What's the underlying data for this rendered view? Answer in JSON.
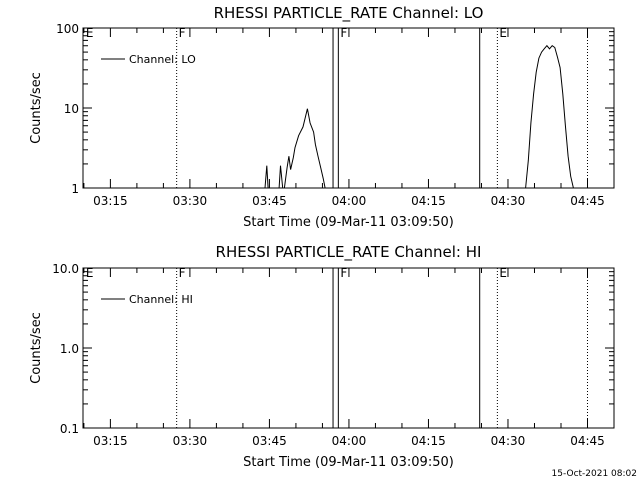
{
  "chart_data": [
    {
      "type": "line",
      "title": "RHESSI PARTICLE_RATE Channel: LO",
      "xlabel": "Start Time (09-Mar-11 03:09:50)",
      "ylabel": "Counts/sec",
      "yscale": "log",
      "ylim": [
        1,
        100
      ],
      "xlim": [
        "03:09:50",
        "04:50:00"
      ],
      "ytick_labels": [
        {
          "value": 1,
          "text": "1"
        },
        {
          "value": 10,
          "text": "10"
        },
        {
          "value": 100,
          "text": "100"
        }
      ],
      "xtick_labels": [
        "03:15",
        "03:30",
        "03:45",
        "04:00",
        "04:15",
        "04:30",
        "04:45"
      ],
      "legend": {
        "entries": [
          "Channel: LO"
        ],
        "placement": "top-left"
      },
      "grid": false,
      "markers": [
        {
          "time": "03:10:00",
          "label": "E",
          "style": "none"
        },
        {
          "time": "03:27:30",
          "label": "F",
          "style": "dotted"
        },
        {
          "time": "03:57:00",
          "label": "",
          "style": "solid"
        },
        {
          "time": "03:58:00",
          "label": "F",
          "style": "solid"
        },
        {
          "time": "04:24:40",
          "label": "",
          "style": "solid"
        },
        {
          "time": "04:28:00",
          "label": "E",
          "style": "dotted"
        },
        {
          "time": "04:45:00",
          "label": "",
          "style": "dotted"
        }
      ],
      "series": [
        {
          "name": "Channel: LO",
          "color": "#000000",
          "x": [
            "03:44:10",
            "03:44:30",
            "03:44:45",
            "03:45:05",
            "03:46:50",
            "03:47:05",
            "03:47:30",
            "03:47:50",
            "03:48:20",
            "03:48:40",
            "03:49:00",
            "03:49:30",
            "03:49:50",
            "03:50:30",
            "03:51:20",
            "03:52:10",
            "03:52:40",
            "03:53:20",
            "03:53:40",
            "03:54:10",
            "03:54:40",
            "03:55:10",
            "03:55:30",
            "03:55:50"
          ],
          "y": [
            1,
            1.9,
            1,
            1,
            1,
            1.9,
            1,
            1,
            1.8,
            2.5,
            1.7,
            2.4,
            3.2,
            4.5,
            5.8,
            9.8,
            6.5,
            5.0,
            3.5,
            2.5,
            1.8,
            1.3,
            1.0,
            1.0
          ]
        },
        {
          "name": "Channel: LO",
          "color": "#000000",
          "x": [
            "04:33:20",
            "04:33:50",
            "04:34:20",
            "04:34:50",
            "04:35:20",
            "04:35:50",
            "04:36:20",
            "04:36:50",
            "04:37:20",
            "04:37:50",
            "04:38:20",
            "04:38:50",
            "04:39:20",
            "04:39:50",
            "04:40:20",
            "04:40:50",
            "04:41:20",
            "04:41:50",
            "04:42:20"
          ],
          "y": [
            1,
            2.2,
            6.5,
            15,
            28,
            42,
            50,
            55,
            60,
            55,
            60,
            57,
            43,
            32,
            15,
            6,
            2.5,
            1.4,
            1
          ]
        }
      ]
    },
    {
      "type": "line",
      "title": "RHESSI PARTICLE_RATE Channel: HI",
      "xlabel": "Start Time (09-Mar-11 03:09:50)",
      "ylabel": "Counts/sec",
      "yscale": "log",
      "ylim": [
        0.1,
        10
      ],
      "xlim": [
        "03:09:50",
        "04:50:00"
      ],
      "ytick_labels": [
        {
          "value": 0.1,
          "text": "0.1"
        },
        {
          "value": 1,
          "text": "1.0"
        },
        {
          "value": 10,
          "text": "10.0"
        }
      ],
      "xtick_labels": [
        "03:15",
        "03:30",
        "03:45",
        "04:00",
        "04:15",
        "04:30",
        "04:45"
      ],
      "legend": {
        "entries": [
          "Channel: HI"
        ],
        "placement": "top-left"
      },
      "grid": false,
      "markers": [
        {
          "time": "03:10:00",
          "label": "E",
          "style": "none"
        },
        {
          "time": "03:27:30",
          "label": "F",
          "style": "dotted"
        },
        {
          "time": "03:57:00",
          "label": "",
          "style": "solid"
        },
        {
          "time": "03:58:00",
          "label": "F",
          "style": "solid"
        },
        {
          "time": "04:24:40",
          "label": "",
          "style": "solid"
        },
        {
          "time": "04:28:00",
          "label": "E",
          "style": "dotted"
        },
        {
          "time": "04:45:00",
          "label": "",
          "style": "dotted"
        }
      ],
      "series": []
    }
  ],
  "footer": {
    "timestamp": "15-Oct-2021 08:02"
  }
}
